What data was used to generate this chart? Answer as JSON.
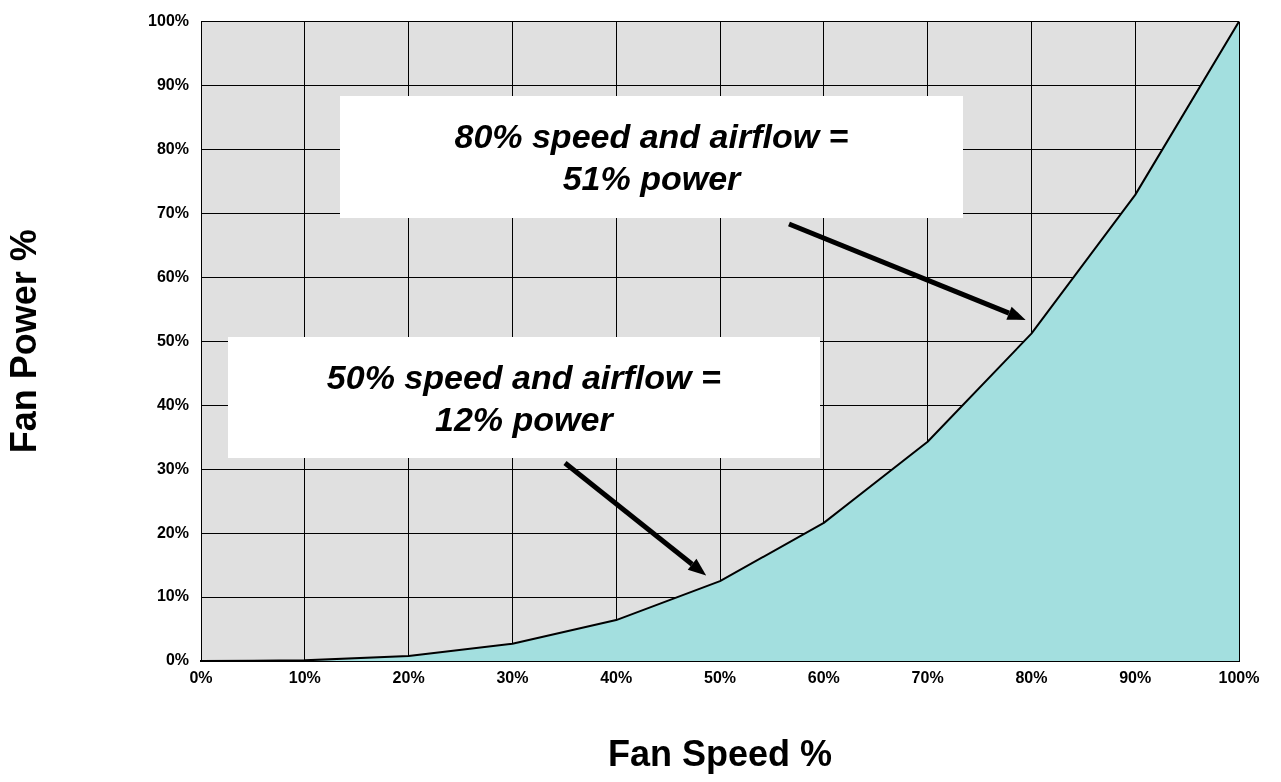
{
  "chart_data": {
    "type": "area",
    "xlabel": "Fan Speed %",
    "ylabel": "Fan Power %",
    "x": [
      0,
      10,
      20,
      30,
      40,
      50,
      60,
      70,
      80,
      90,
      100
    ],
    "series": [
      {
        "color": "#a3dfdf",
        "values": [
          0,
          0.1,
          0.8,
          2.7,
          6.4,
          12.5,
          21.6,
          34.3,
          51.2,
          72.9,
          100
        ]
      }
    ],
    "xlim": [
      0,
      100
    ],
    "ylim": [
      0,
      100
    ],
    "xticks": [
      {
        "value": 0,
        "label": "0%"
      },
      {
        "value": 10,
        "label": "10%"
      },
      {
        "value": 20,
        "label": "20%"
      },
      {
        "value": 30,
        "label": "30%"
      },
      {
        "value": 40,
        "label": "40%"
      },
      {
        "value": 50,
        "label": "50%"
      },
      {
        "value": 60,
        "label": "60%"
      },
      {
        "value": 70,
        "label": "70%"
      },
      {
        "value": 80,
        "label": "80%"
      },
      {
        "value": 90,
        "label": "90%"
      },
      {
        "value": 100,
        "label": "100%"
      }
    ],
    "yticks": [
      {
        "value": 0,
        "label": "0%"
      },
      {
        "value": 10,
        "label": "10%"
      },
      {
        "value": 20,
        "label": "20%"
      },
      {
        "value": 30,
        "label": "30%"
      },
      {
        "value": 40,
        "label": "40%"
      },
      {
        "value": 50,
        "label": "50%"
      },
      {
        "value": 60,
        "label": "60%"
      },
      {
        "value": 70,
        "label": "70%"
      },
      {
        "value": 80,
        "label": "80%"
      },
      {
        "value": 90,
        "label": "90%"
      },
      {
        "value": 100,
        "label": "100%"
      }
    ],
    "grid": true,
    "marker": "none",
    "line_style": "solid",
    "annotations": [
      "80% speed and airflow = 51% power",
      "50% speed and airflow = 12% power"
    ]
  }
}
